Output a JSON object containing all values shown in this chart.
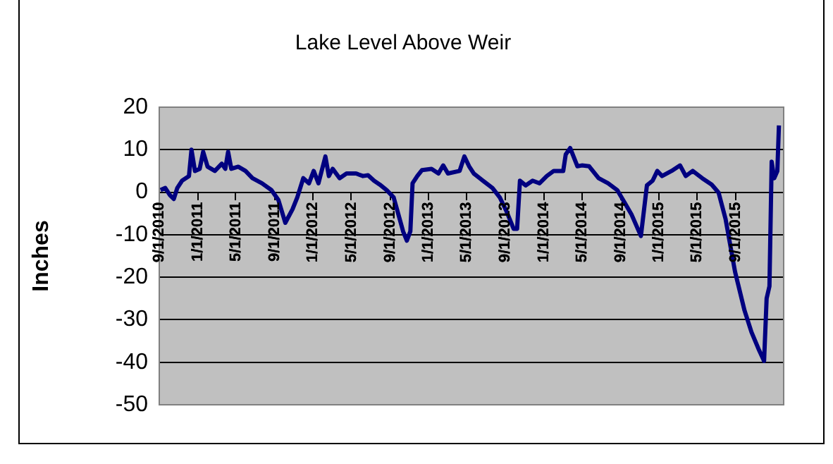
{
  "chart_data": {
    "type": "line",
    "title": "Lake Level Above Weir",
    "ylabel": "Inches",
    "color": "#000080",
    "grid": "y",
    "xlim": [
      "2010-09-01",
      "2016-01-30"
    ],
    "ylim": [
      -50,
      20
    ],
    "yticks": [
      -50,
      -40,
      -30,
      -20,
      -10,
      0,
      10,
      20
    ],
    "xticks": [
      {
        "value": "2010-09-01",
        "label": "9/1/2010"
      },
      {
        "value": "2011-01-01",
        "label": "1/1/2011"
      },
      {
        "value": "2011-05-01",
        "label": "5/1/2011"
      },
      {
        "value": "2011-09-01",
        "label": "9/1/2011"
      },
      {
        "value": "2012-01-01",
        "label": "1/1/2012"
      },
      {
        "value": "2012-05-01",
        "label": "5/1/2012"
      },
      {
        "value": "2012-09-01",
        "label": "9/1/2012"
      },
      {
        "value": "2013-01-01",
        "label": "1/1/2013"
      },
      {
        "value": "2013-05-01",
        "label": "5/1/2013"
      },
      {
        "value": "2013-09-01",
        "label": "9/1/2013"
      },
      {
        "value": "2014-01-01",
        "label": "1/1/2014"
      },
      {
        "value": "2014-05-01",
        "label": "5/1/2014"
      },
      {
        "value": "2014-09-01",
        "label": "9/1/2014"
      },
      {
        "value": "2015-01-01",
        "label": "1/1/2015"
      },
      {
        "value": "2015-05-01",
        "label": "5/1/2015"
      },
      {
        "value": "2015-09-01",
        "label": "9/1/2015"
      }
    ],
    "x": [
      "2010-09-05",
      "2010-09-20",
      "2010-10-05",
      "2010-10-17",
      "2010-10-28",
      "2010-11-12",
      "2010-12-04",
      "2010-12-12",
      "2010-12-23",
      "2011-01-07",
      "2011-01-18",
      "2011-02-01",
      "2011-02-24",
      "2011-03-18",
      "2011-03-29",
      "2011-04-07",
      "2011-04-17",
      "2011-05-09",
      "2011-06-01",
      "2011-06-23",
      "2011-07-23",
      "2011-08-22",
      "2011-09-13",
      "2011-10-05",
      "2011-10-28",
      "2011-11-12",
      "2011-12-01",
      "2011-12-19",
      "2012-01-03",
      "2012-01-18",
      "2012-02-09",
      "2012-02-20",
      "2012-03-03",
      "2012-03-25",
      "2012-04-16",
      "2012-05-16",
      "2012-06-07",
      "2012-06-23",
      "2012-07-12",
      "2012-07-30",
      "2012-08-21",
      "2012-09-12",
      "2012-09-27",
      "2012-10-12",
      "2012-10-24",
      "2012-11-04",
      "2012-11-11",
      "2012-11-26",
      "2012-12-11",
      "2013-01-10",
      "2013-02-01",
      "2013-02-16",
      "2013-03-03",
      "2013-04-09",
      "2013-04-24",
      "2013-05-09",
      "2013-05-24",
      "2013-06-22",
      "2013-07-22",
      "2013-08-14",
      "2013-09-05",
      "2013-09-27",
      "2013-10-08",
      "2013-10-17",
      "2013-11-04",
      "2013-11-26",
      "2013-12-18",
      "2014-01-10",
      "2014-02-01",
      "2014-03-03",
      "2014-03-11",
      "2014-03-25",
      "2014-04-17",
      "2014-05-01",
      "2014-05-24",
      "2014-06-23",
      "2014-07-23",
      "2014-08-21",
      "2014-09-13",
      "2014-10-05",
      "2014-11-04",
      "2014-11-23",
      "2014-12-11",
      "2014-12-26",
      "2015-01-10",
      "2015-02-09",
      "2015-03-08",
      "2015-03-26",
      "2015-04-17",
      "2015-05-17",
      "2015-06-16",
      "2015-07-08",
      "2015-07-30",
      "2015-08-29",
      "2015-09-28",
      "2015-10-20",
      "2015-11-11",
      "2015-11-29",
      "2015-12-07",
      "2015-12-16",
      "2015-12-23",
      "2015-12-31",
      "2016-01-10",
      "2016-01-15"
    ],
    "values": [
      0.5,
      1,
      -0.7,
      -1.6,
      1,
      2.7,
      3.8,
      10,
      5,
      5.5,
      9.5,
      6,
      5,
      6.7,
      5.5,
      9.5,
      5.5,
      6,
      5,
      3.3,
      2.1,
      0.5,
      -1.8,
      -7.2,
      -4,
      -1.2,
      3.3,
      2.1,
      5,
      2.1,
      8.4,
      3.8,
      5.5,
      3.3,
      4.4,
      4.4,
      3.8,
      4,
      2.7,
      1.8,
      0.5,
      -1.2,
      -5.2,
      -9.2,
      -11.4,
      -9.2,
      2.1,
      3.8,
      5.2,
      5.5,
      4.4,
      6.3,
      4.4,
      5,
      8.4,
      6.1,
      4.4,
      2.7,
      1,
      -1.2,
      -4.6,
      -8.6,
      -8.6,
      2.7,
      1.6,
      2.7,
      2.1,
      3.8,
      5,
      5,
      8.9,
      10.4,
      6.1,
      6.3,
      6.1,
      3.3,
      2.1,
      0.5,
      -2.4,
      -5.2,
      -10.3,
      1.6,
      2.7,
      5,
      3.8,
      5,
      6.3,
      3.8,
      5,
      3.3,
      1.8,
      -0.1,
      -6.3,
      -18.7,
      -27.8,
      -32.9,
      -36.8,
      -39.7,
      -25,
      -22.1,
      7.2,
      3.3,
      5,
      15.7
    ]
  }
}
